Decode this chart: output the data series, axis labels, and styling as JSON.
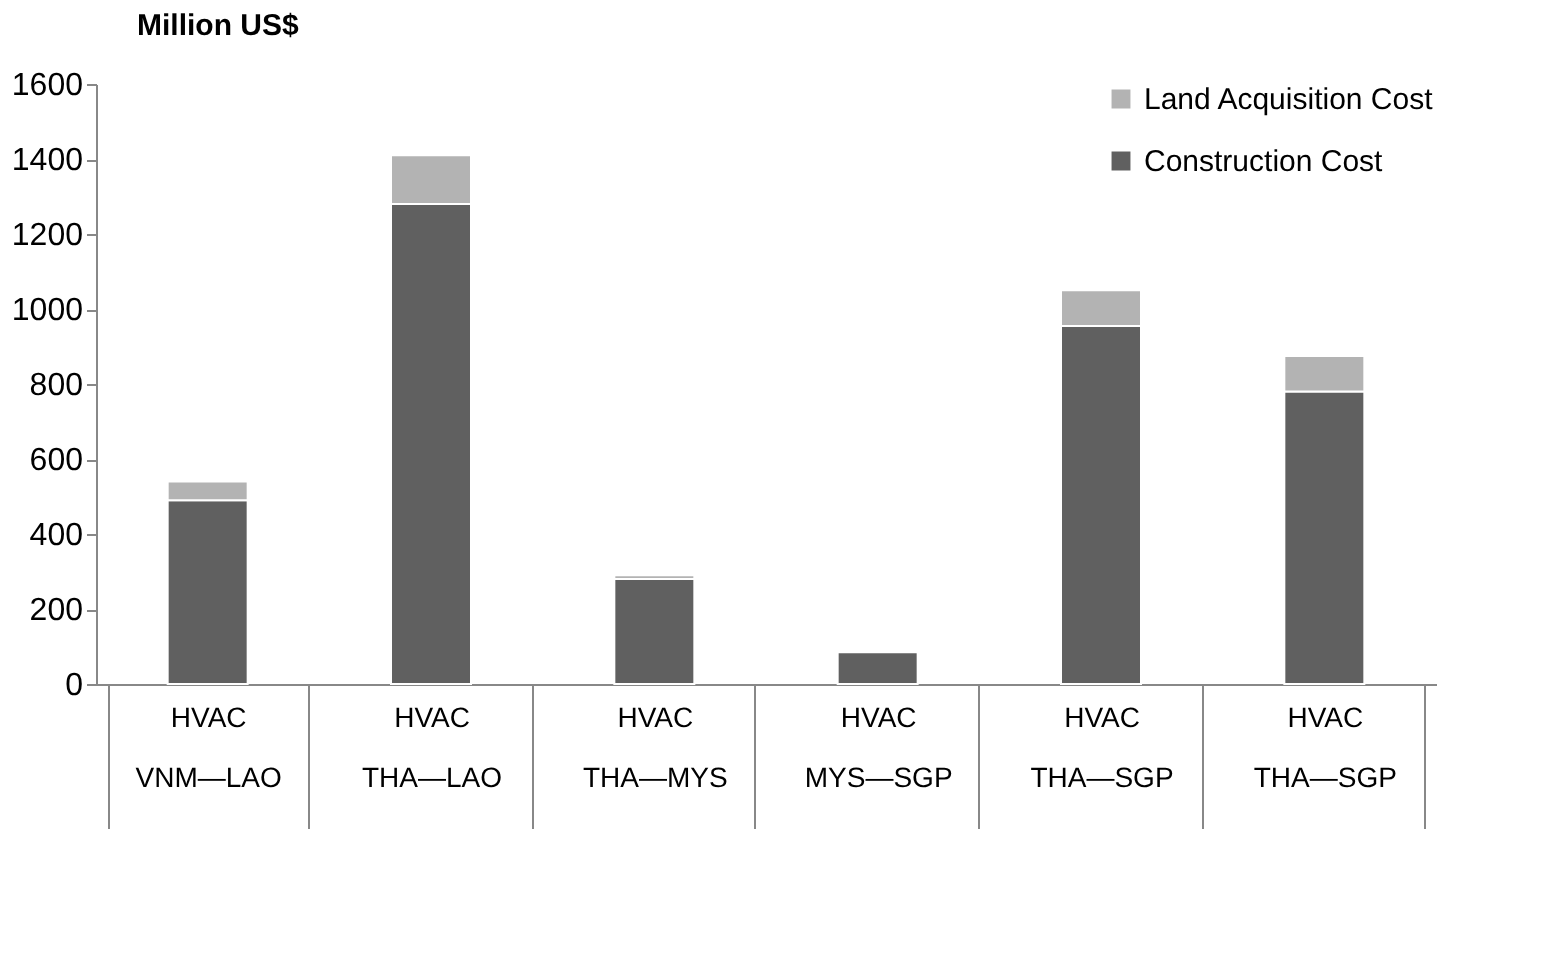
{
  "chart_data": {
    "type": "bar",
    "stacked": true,
    "ylabel": "Million US$",
    "categories": [
      "HVAC\nVNM—LAO",
      "HVAC\nTHA—LAO",
      "HVAC\nTHA—MYS",
      "HVAC\nMYS—SGP",
      "HVAC\nTHA—SGP",
      "HVAC\nTHA—SGP"
    ],
    "series": [
      {
        "name": "Construction Cost",
        "color": "#606060",
        "values": [
          490,
          1280,
          280,
          85,
          955,
          780
        ]
      },
      {
        "name": "Land Acquisition Cost",
        "color": "#b3b3b3",
        "values": [
          50,
          130,
          10,
          0,
          95,
          95
        ]
      }
    ],
    "ylim": [
      0,
      1600
    ],
    "yticks": [
      0,
      200,
      400,
      600,
      800,
      1000,
      1200,
      1400,
      1600
    ],
    "grid": false,
    "legend": "top right"
  }
}
